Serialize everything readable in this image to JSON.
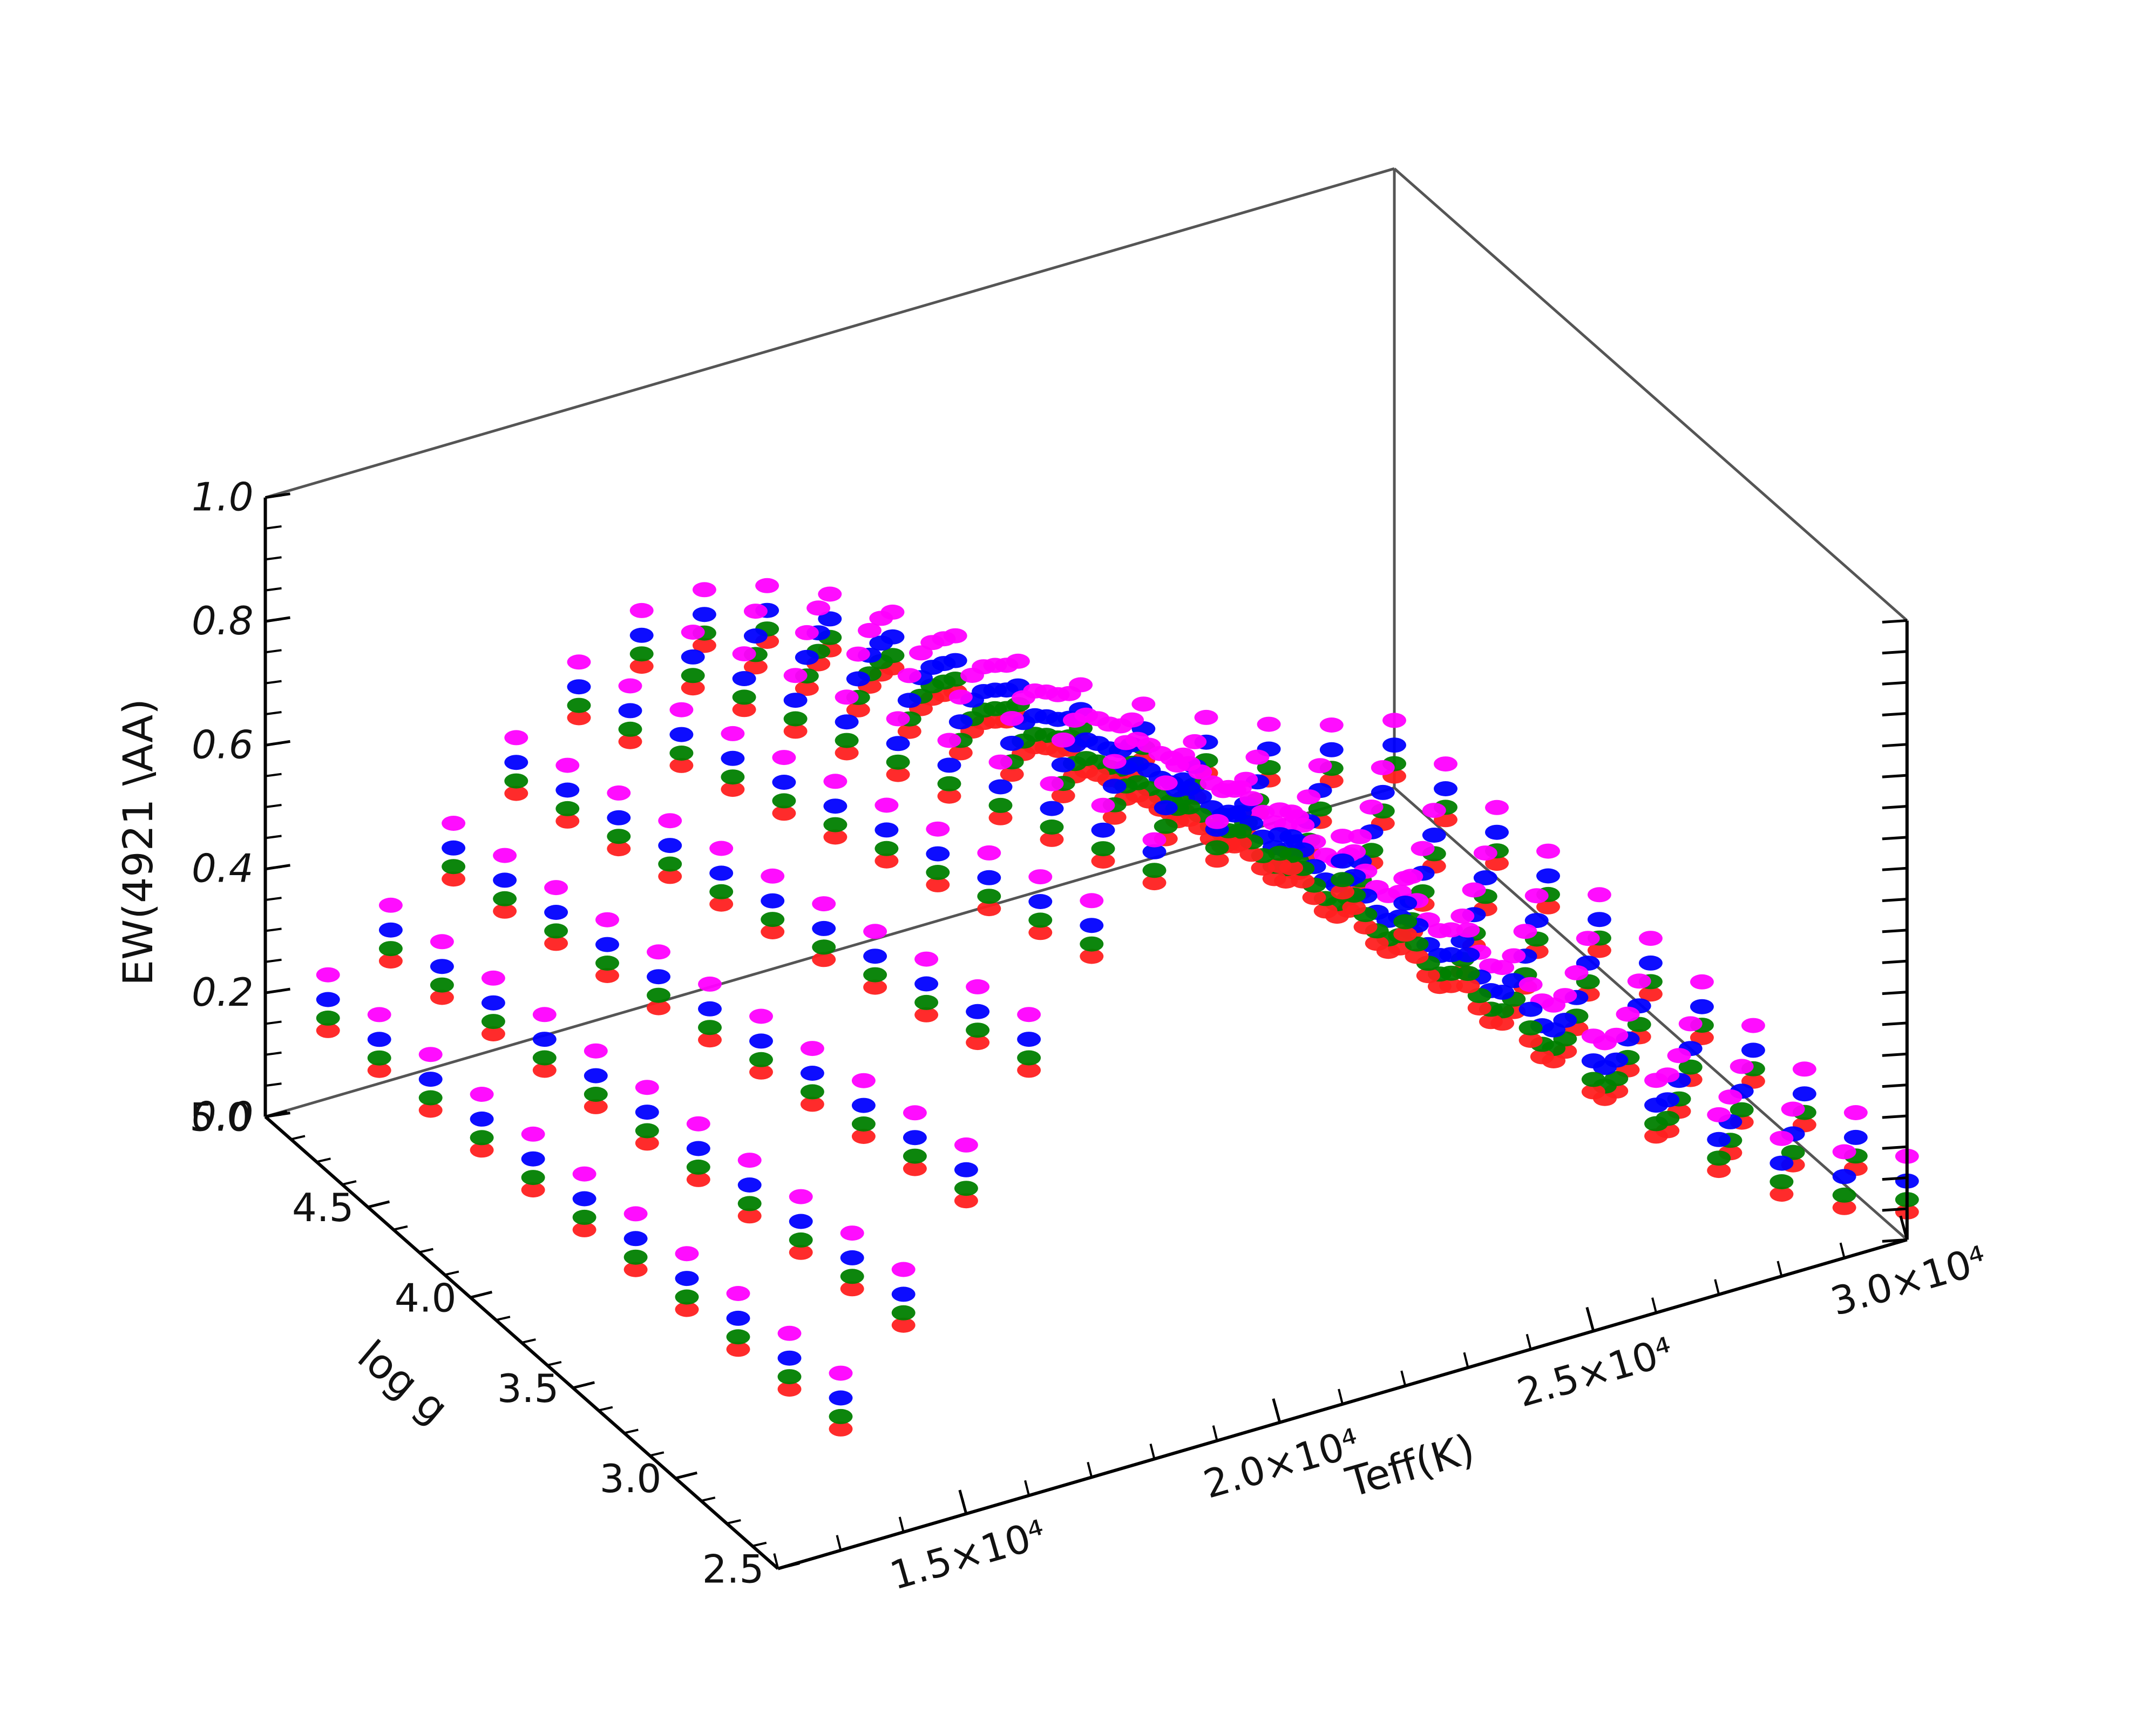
{
  "chart_data": {
    "type": "scatter3d",
    "title": "",
    "xlabel": "Teff(K)",
    "ylabel": "log g",
    "zlabel": "EW(4921 \\AA)",
    "xlim": [
      12000,
      30000
    ],
    "ylim": [
      2.5,
      5.0
    ],
    "zlim": [
      0.0,
      1.0
    ],
    "x_ticks": [
      {
        "value": 15000,
        "label": "1.5×10⁴"
      },
      {
        "value": 20000,
        "label": "2.0×10⁴"
      },
      {
        "value": 25000,
        "label": "2.5×10⁴"
      },
      {
        "value": 30000,
        "label": "3.0×10⁴"
      }
    ],
    "y_ticks": [
      {
        "value": 2.5,
        "label": "2.5"
      },
      {
        "value": 3.0,
        "label": "3.0"
      },
      {
        "value": 3.5,
        "label": "3.5"
      },
      {
        "value": 4.0,
        "label": "4.0"
      },
      {
        "value": 4.5,
        "label": "4.5"
      },
      {
        "value": 5.0,
        "label": "5.0"
      }
    ],
    "z_ticks": [
      {
        "value": 0.0,
        "label": "0.0"
      },
      {
        "value": 0.2,
        "label": "0.2"
      },
      {
        "value": 0.4,
        "label": "0.4"
      },
      {
        "value": 0.6,
        "label": "0.6"
      },
      {
        "value": 0.8,
        "label": "0.8"
      },
      {
        "value": 1.0,
        "label": "1.0"
      }
    ],
    "teff_grid": [
      13000,
      14000,
      15000,
      16000,
      17000,
      18000,
      19000,
      20000,
      21000,
      22000,
      23000,
      24000,
      25000,
      26000,
      27000,
      28000,
      29000,
      30000
    ],
    "logg_grid": [
      2.5,
      2.75,
      3.0,
      3.25,
      3.5,
      3.75,
      4.0,
      4.25,
      4.5,
      4.75,
      5.0
    ],
    "ew_model": {
      "peak": 0.77,
      "teff_peak": 18500,
      "width_lo": 4500,
      "width_hi": 7000,
      "g_slope": 0.2
    },
    "grid_color": "#555555",
    "series": [
      {
        "name": "",
        "color": "#ff2020",
        "offset": -0.02
      },
      {
        "name": "",
        "color": "#008000",
        "offset": 0.0
      },
      {
        "name": "",
        "color": "#0000ff",
        "offset": 0.03
      },
      {
        "name": "",
        "color": "#ff00ff",
        "offset": 0.07
      }
    ]
  }
}
